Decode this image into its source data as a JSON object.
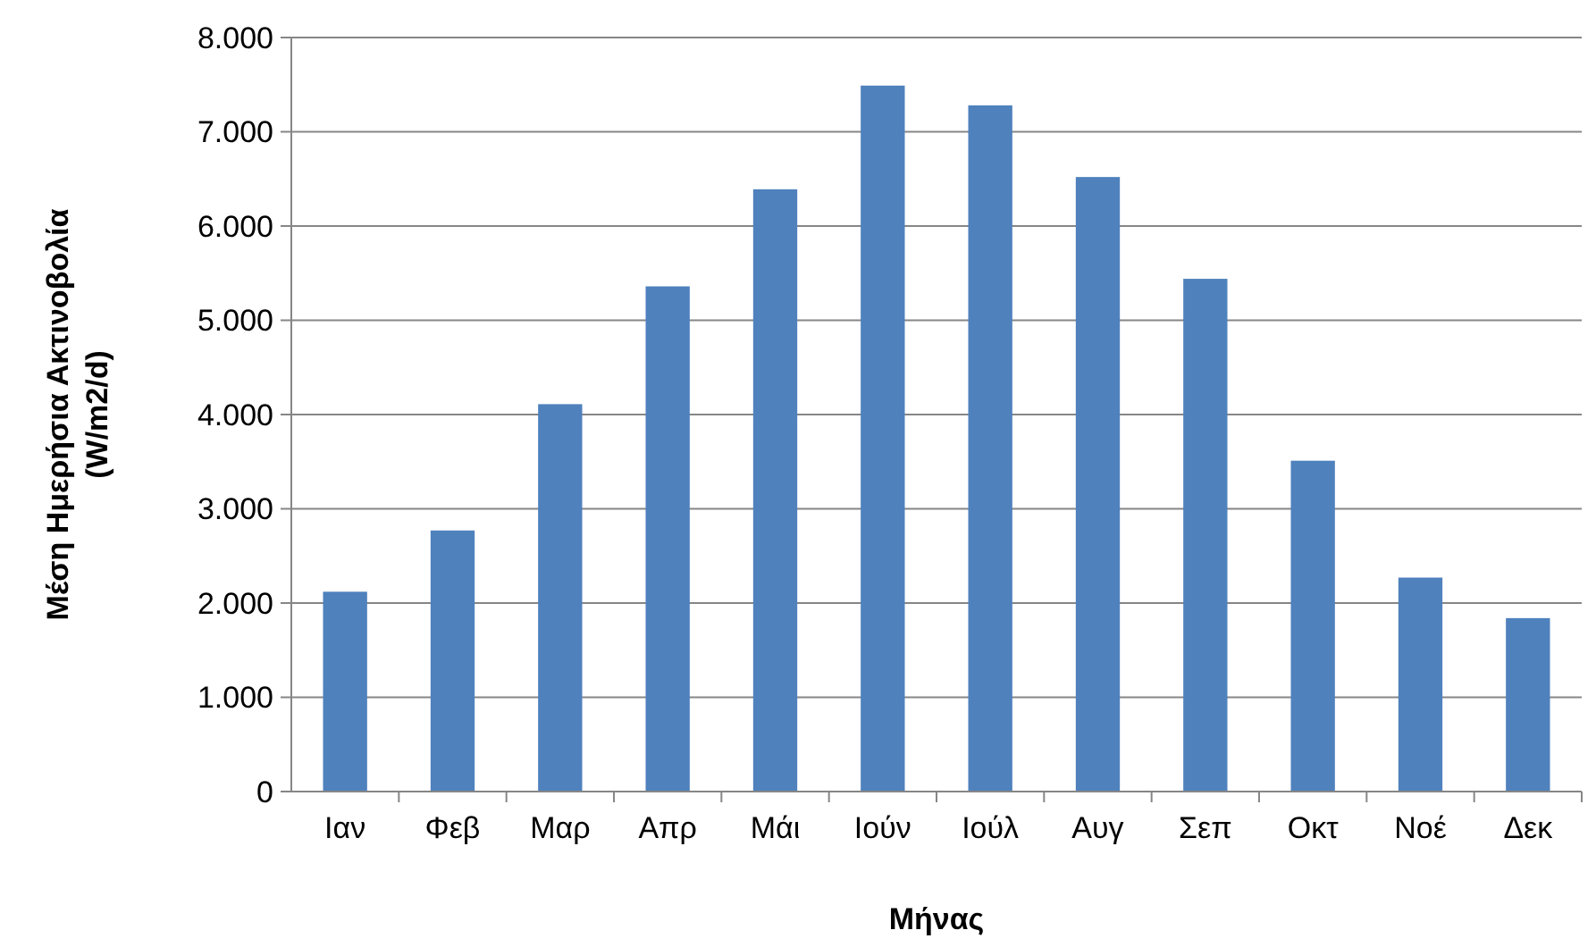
{
  "chart_data": {
    "type": "bar",
    "xlabel": "Μήνας",
    "ylabel": "Μέση Ημερήσια Ακτινοβολία\n(W/m2/d)",
    "categories": [
      "Ιαν",
      "Φεβ",
      "Μαρ",
      "Απρ",
      "Μάι",
      "Ιούν",
      "Ιούλ",
      "Αυγ",
      "Σεπ",
      "Οκτ",
      "Νοέ",
      "Δεκ"
    ],
    "values": [
      2120,
      2770,
      4110,
      5360,
      6390,
      7490,
      7280,
      6520,
      5440,
      3510,
      2270,
      1840
    ],
    "color": "#4f81bd",
    "ylim": [
      0,
      8000
    ],
    "yticks": [
      0,
      {
        "value": 1000,
        "label": "1.000"
      },
      {
        "value": 2000,
        "label": "2.000"
      },
      {
        "value": 3000,
        "label": "3.000"
      },
      {
        "value": 4000,
        "label": "4.000"
      },
      {
        "value": 5000,
        "label": "5.000"
      },
      {
        "value": 6000,
        "label": "6.000"
      },
      {
        "value": 7000,
        "label": "7.000"
      },
      {
        "value": 8000,
        "label": "8.000"
      }
    ],
    "grid": "y"
  }
}
